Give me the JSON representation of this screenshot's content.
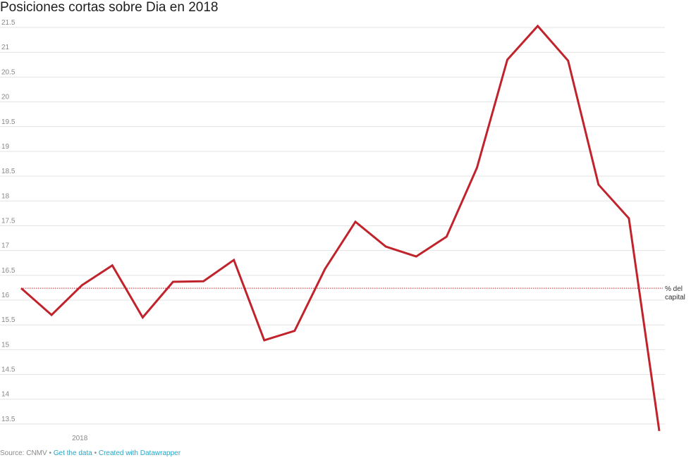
{
  "chart_data": {
    "type": "line",
    "title": "Posiciones cortas sobre Dia en 2018",
    "categories": [
      null,
      null,
      "2018",
      null,
      null,
      null,
      null,
      null,
      null,
      null,
      null,
      null,
      null,
      null,
      null,
      null,
      null,
      null,
      null,
      null,
      null,
      null
    ],
    "series": [
      {
        "name": "Posiciones cortas",
        "color": "#c0232b",
        "values": [
          16.24,
          15.7,
          16.3,
          16.7,
          15.65,
          16.37,
          16.38,
          16.81,
          15.19,
          15.38,
          16.63,
          17.58,
          17.08,
          16.88,
          17.28,
          18.67,
          20.85,
          21.53,
          20.83,
          18.33,
          17.65,
          13.36
        ]
      }
    ],
    "ylim": [
      13.3,
      21.6
    ],
    "yticks": [
      13.5,
      14,
      14.5,
      15,
      15.5,
      16,
      16.5,
      17,
      17.5,
      18,
      18.5,
      19,
      19.5,
      20,
      20.5,
      21,
      21.5
    ],
    "grid": true,
    "reference_line": {
      "value": 16.24,
      "label": "% del capital",
      "color": "#c0232b"
    },
    "source": "Source: CNMV",
    "links": [
      "Get the data",
      "Created with Datawrapper"
    ]
  }
}
